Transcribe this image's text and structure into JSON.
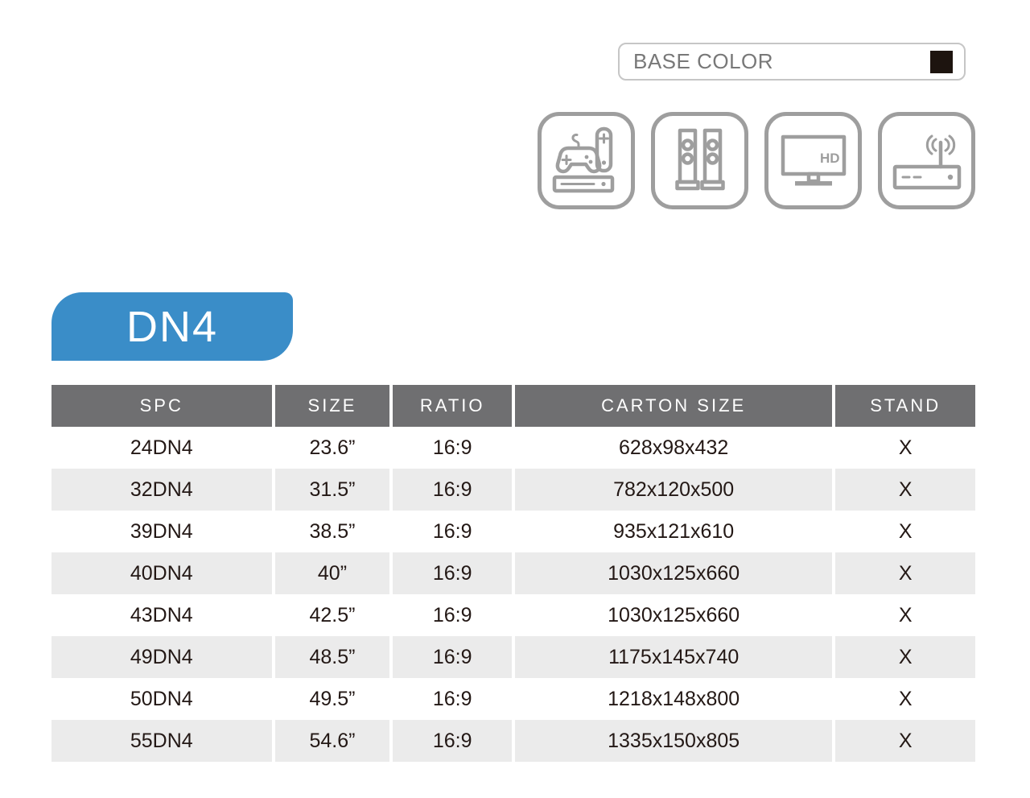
{
  "base_color": {
    "label": "BASE COLOR",
    "swatch_hex": "#1d140f"
  },
  "icons": [
    {
      "name": "game-console-icon"
    },
    {
      "name": "speakers-icon"
    },
    {
      "name": "tv-hd-icon",
      "label": "HD"
    },
    {
      "name": "wifi-router-icon"
    }
  ],
  "series_badge": {
    "label": "DN4",
    "color": "#3a8dc8"
  },
  "table": {
    "headers": [
      "SPC",
      "SIZE",
      "RATIO",
      "CARTON SIZE",
      "STAND"
    ],
    "rows": [
      [
        "24DN4",
        "23.6”",
        "16:9",
        "628x98x432",
        "X"
      ],
      [
        "32DN4",
        "31.5”",
        "16:9",
        "782x120x500",
        "X"
      ],
      [
        "39DN4",
        "38.5”",
        "16:9",
        "935x121x610",
        "X"
      ],
      [
        "40DN4",
        "40”",
        "16:9",
        "1030x125x660",
        "X"
      ],
      [
        "43DN4",
        "42.5”",
        "16:9",
        "1030x125x660",
        "X"
      ],
      [
        "49DN4",
        "48.5”",
        "16:9",
        "1175x145x740",
        "X"
      ],
      [
        "50DN4",
        "49.5”",
        "16:9",
        "1218x148x800",
        "X"
      ],
      [
        "55DN4",
        "54.6”",
        "16:9",
        "1335x150x805",
        "X"
      ]
    ]
  }
}
